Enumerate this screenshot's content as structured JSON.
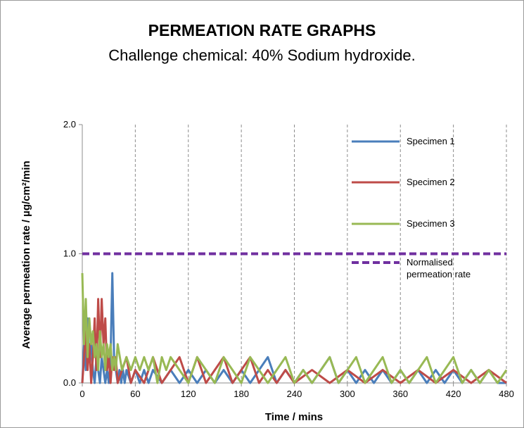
{
  "title": "PERMEATION RATE GRAPHS",
  "subtitle": "Challenge chemical: 40% Sodium hydroxide.",
  "chart_data": {
    "type": "line",
    "xlabel": "Time / mins",
    "ylabel": "Average permeation rate / µg/cm²/min",
    "xlim": [
      0,
      480
    ],
    "ylim": [
      0,
      2
    ],
    "x_ticks": [
      "0",
      "60",
      "120",
      "180",
      "240",
      "300",
      "360",
      "420",
      "480"
    ],
    "y_ticks": [
      "0.0",
      "1.0",
      "2.0"
    ],
    "grid": "vertical dashed",
    "legend_position": "right",
    "series": [
      {
        "name": "Specimen 1",
        "color": "#4a7ebb",
        "dashed": false,
        "x": [
          0,
          2,
          4,
          6,
          8,
          10,
          12,
          14,
          16,
          18,
          20,
          22,
          24,
          26,
          28,
          30,
          32,
          34,
          36,
          38,
          40,
          42,
          44,
          46,
          48,
          50,
          55,
          60,
          65,
          70,
          75,
          80,
          90,
          100,
          110,
          120,
          130,
          140,
          150,
          160,
          170,
          180,
          190,
          200,
          210,
          220,
          230,
          240,
          250,
          260,
          270,
          280,
          290,
          300,
          310,
          320,
          330,
          340,
          350,
          360,
          370,
          380,
          390,
          400,
          410,
          420,
          430,
          440,
          450,
          460,
          470,
          480
        ],
        "y": [
          0.0,
          0.3,
          0.1,
          0.5,
          0.2,
          0.3,
          0.1,
          0.0,
          0.2,
          0.1,
          0.0,
          0.2,
          0.1,
          0.0,
          0.1,
          0.0,
          0.2,
          0.85,
          0.2,
          0.1,
          0.0,
          0.1,
          0.0,
          0.1,
          0.0,
          0.1,
          0.0,
          0.1,
          0.0,
          0.1,
          0.0,
          0.1,
          0.0,
          0.1,
          0.0,
          0.1,
          0.0,
          0.1,
          0.0,
          0.1,
          0.0,
          0.1,
          0.0,
          0.1,
          0.2,
          0.0,
          0.1,
          0.0,
          0.1,
          0.0,
          0.1,
          0.2,
          0.0,
          0.1,
          0.0,
          0.1,
          0.0,
          0.1,
          0.0,
          0.1,
          0.0,
          0.1,
          0.0,
          0.1,
          0.0,
          0.1,
          0.0,
          0.1,
          0.0,
          0.1,
          0.0,
          0.0
        ]
      },
      {
        "name": "Specimen 2",
        "color": "#be4b48",
        "dashed": false,
        "x": [
          0,
          2,
          4,
          6,
          8,
          10,
          12,
          14,
          16,
          18,
          20,
          22,
          24,
          26,
          28,
          30,
          32,
          34,
          36,
          38,
          40,
          45,
          50,
          55,
          60,
          70,
          80,
          90,
          100,
          110,
          120,
          130,
          140,
          150,
          160,
          170,
          180,
          190,
          200,
          210,
          220,
          230,
          240,
          260,
          280,
          300,
          320,
          340,
          360,
          380,
          400,
          420,
          440,
          460,
          480
        ],
        "y": [
          0.0,
          0.2,
          0.4,
          0.1,
          0.3,
          0.0,
          0.2,
          0.5,
          0.1,
          0.65,
          0.2,
          0.65,
          0.3,
          0.5,
          0.1,
          0.2,
          0.0,
          0.2,
          0.1,
          0.2,
          0.0,
          0.1,
          0.2,
          0.0,
          0.1,
          0.0,
          0.2,
          0.0,
          0.1,
          0.2,
          0.0,
          0.2,
          0.0,
          0.1,
          0.2,
          0.0,
          0.1,
          0.2,
          0.0,
          0.1,
          0.0,
          0.1,
          0.0,
          0.1,
          0.0,
          0.1,
          0.0,
          0.1,
          0.0,
          0.1,
          0.0,
          0.1,
          0.0,
          0.1,
          0.0
        ]
      },
      {
        "name": "Specimen 3",
        "color": "#98b954",
        "dashed": false,
        "x": [
          0,
          2,
          4,
          6,
          8,
          10,
          12,
          14,
          16,
          18,
          20,
          22,
          24,
          26,
          28,
          30,
          32,
          34,
          36,
          38,
          40,
          45,
          50,
          55,
          60,
          65,
          70,
          75,
          80,
          85,
          90,
          95,
          100,
          110,
          120,
          130,
          140,
          150,
          160,
          170,
          180,
          190,
          200,
          210,
          220,
          230,
          240,
          250,
          260,
          270,
          280,
          290,
          300,
          310,
          320,
          330,
          340,
          350,
          360,
          370,
          380,
          390,
          400,
          410,
          420,
          430,
          440,
          450,
          460,
          470,
          480
        ],
        "y": [
          0.85,
          0.3,
          0.65,
          0.2,
          0.5,
          0.3,
          0.4,
          0.2,
          0.3,
          0.1,
          0.4,
          0.2,
          0.3,
          0.1,
          0.3,
          0.2,
          0.3,
          0.1,
          0.2,
          0.1,
          0.3,
          0.1,
          0.2,
          0.1,
          0.2,
          0.1,
          0.2,
          0.1,
          0.2,
          0.0,
          0.2,
          0.1,
          0.2,
          0.1,
          0.0,
          0.2,
          0.1,
          0.0,
          0.2,
          0.1,
          0.0,
          0.2,
          0.1,
          0.0,
          0.1,
          0.2,
          0.0,
          0.1,
          0.0,
          0.1,
          0.2,
          0.0,
          0.1,
          0.2,
          0.0,
          0.1,
          0.2,
          0.0,
          0.1,
          0.0,
          0.1,
          0.2,
          0.0,
          0.1,
          0.2,
          0.0,
          0.1,
          0.0,
          0.1,
          0.0,
          0.1
        ]
      },
      {
        "name": "Normalised permeation rate",
        "legend_lines": [
          "Normalised",
          "permeation rate"
        ],
        "color": "#7030a0",
        "dashed": true,
        "x": [
          0,
          480
        ],
        "y": [
          1.0,
          1.0
        ]
      }
    ]
  }
}
